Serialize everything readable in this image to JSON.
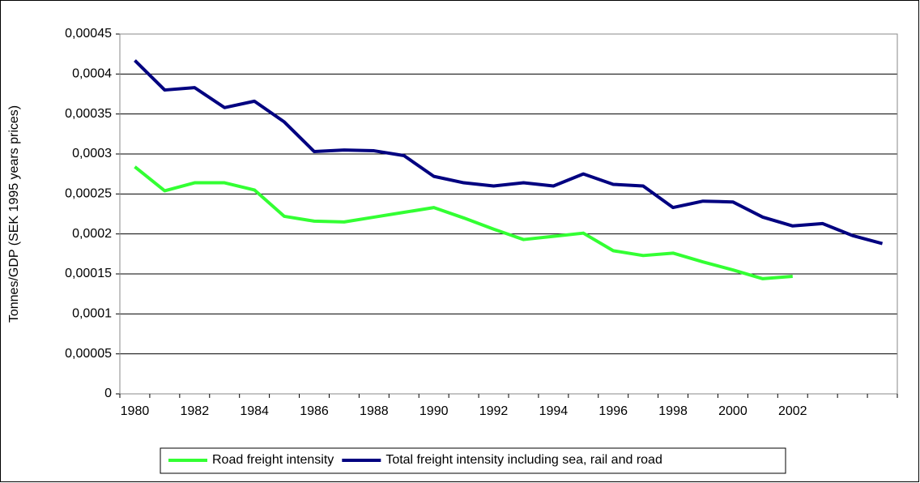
{
  "chart_data": {
    "type": "line",
    "y_label": "Tonnes/GDP (SEK 1995 years prices)",
    "categories": [
      "1980",
      null,
      "1982",
      null,
      "1984",
      null,
      "1986",
      null,
      "1988",
      null,
      "1990",
      null,
      "1992",
      null,
      "1994",
      null,
      "1996",
      null,
      "1998",
      null,
      "2000",
      null,
      "2002",
      null,
      null,
      null
    ],
    "series": [
      {
        "name": "Road freight intensity",
        "color": "#33ff33",
        "values": [
          0.000284,
          0.000254,
          0.000264,
          0.000264,
          0.000255,
          0.000222,
          0.000216,
          0.000215,
          0.000221,
          0.000227,
          0.000233,
          0.00022,
          0.000206,
          0.000193,
          0.000197,
          0.000201,
          0.000179,
          0.000173,
          0.000176,
          0.000165,
          0.000155,
          0.000144,
          0.000147,
          null,
          null,
          null
        ]
      },
      {
        "name": "Total freight intensity including sea, rail and road",
        "color": "#000080",
        "values": [
          0.000417,
          0.00038,
          0.000383,
          0.000358,
          0.000366,
          0.00034,
          0.000303,
          0.000305,
          0.000304,
          0.000298,
          0.000272,
          0.000264,
          0.00026,
          0.000264,
          0.00026,
          0.000275,
          0.000262,
          0.00026,
          0.000233,
          0.000241,
          0.00024,
          0.000221,
          0.00021,
          0.000213,
          0.000198,
          0.000188
        ]
      }
    ],
    "ylim": [
      0,
      0.00045
    ],
    "yticks": [
      0,
      {
        "value": 5e-05,
        "label": "0,00005"
      },
      {
        "value": 0.0001,
        "label": "0,0001"
      },
      {
        "value": 0.00015,
        "label": "0,00015"
      },
      {
        "value": 0.0002,
        "label": "0,0002"
      },
      {
        "value": 0.00025,
        "label": "0,00025"
      },
      {
        "value": 0.0003,
        "label": "0,0003"
      },
      {
        "value": 0.00035,
        "label": "0,00035"
      },
      {
        "value": 0.0004,
        "label": "0,0004"
      },
      {
        "value": 0.00045,
        "label": "0,00045"
      }
    ],
    "grid": true,
    "legend": "bottom"
  }
}
